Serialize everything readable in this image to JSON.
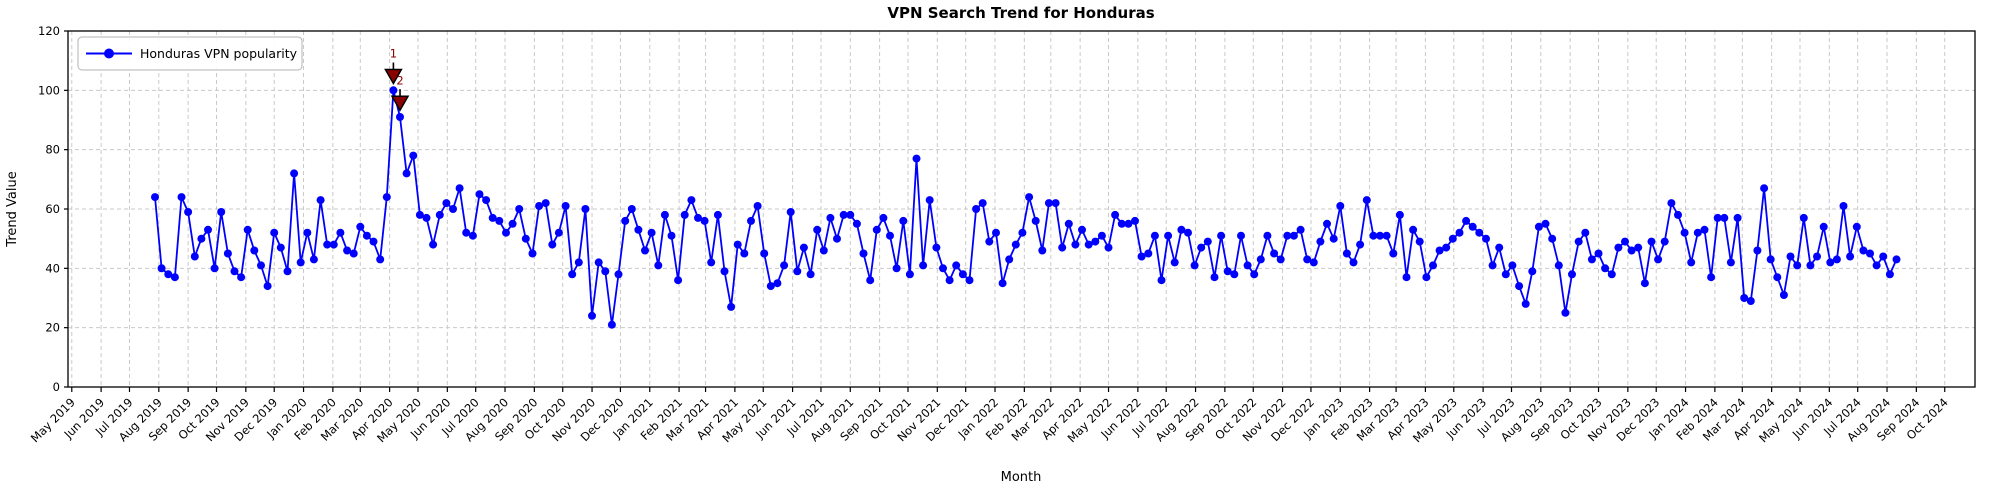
{
  "title": "VPN Search Trend for Honduras",
  "chart_data": {
    "type": "line",
    "title": "VPN Search Trend for Honduras",
    "xlabel": "Month",
    "ylabel": "Trend Value",
    "ylim": [
      0,
      120
    ],
    "yticks": [
      0,
      20,
      40,
      60,
      80,
      100,
      120
    ],
    "grid": true,
    "grid_style": "dashed",
    "legend_position": "upper left",
    "x_tick_labels": [
      "May 2019",
      "Jun 2019",
      "Jul 2019",
      "Aug 2019",
      "Sep 2019",
      "Oct 2019",
      "Nov 2019",
      "Dec 2019",
      "Jan 2020",
      "Feb 2020",
      "Mar 2020",
      "Apr 2020",
      "May 2020",
      "Jun 2020",
      "Jul 2020",
      "Aug 2020",
      "Sep 2020",
      "Oct 2020",
      "Nov 2020",
      "Dec 2020",
      "Jan 2021",
      "Feb 2021",
      "Mar 2021",
      "Apr 2021",
      "May 2021",
      "Jun 2021",
      "Jul 2021",
      "Aug 2021",
      "Sep 2021",
      "Oct 2021",
      "Nov 2021",
      "Dec 2021",
      "Jan 2022",
      "Feb 2022",
      "Mar 2022",
      "Apr 2022",
      "May 2022",
      "Jun 2022",
      "Jul 2022",
      "Aug 2022",
      "Sep 2022",
      "Oct 2022",
      "Nov 2022",
      "Dec 2022",
      "Jan 2023",
      "Feb 2023",
      "Mar 2023",
      "Apr 2023",
      "May 2023",
      "Jun 2023",
      "Jul 2023",
      "Aug 2023",
      "Sep 2023",
      "Oct 2023",
      "Nov 2023",
      "Dec 2023",
      "Jan 2024",
      "Feb 2024",
      "Mar 2024",
      "Apr 2024",
      "May 2024",
      "Jun 2024",
      "Jul 2024",
      "Aug 2024",
      "Sep 2024",
      "Oct 2024"
    ],
    "series": [
      {
        "name": "Honduras VPN popularity",
        "color": "#0000ff",
        "marker": "circle",
        "x_start": "2019-07-28",
        "x_step_days": 7,
        "values": [
          64,
          40,
          38,
          37,
          64,
          59,
          44,
          50,
          53,
          40,
          59,
          45,
          39,
          37,
          53,
          46,
          41,
          34,
          52,
          47,
          39,
          72,
          42,
          52,
          43,
          63,
          48,
          48,
          52,
          46,
          45,
          54,
          51,
          49,
          43,
          64,
          100,
          91,
          72,
          78,
          58,
          57,
          48,
          58,
          62,
          60,
          67,
          52,
          51,
          65,
          63,
          57,
          56,
          52,
          55,
          60,
          50,
          45,
          61,
          62,
          48,
          52,
          61,
          38,
          42,
          60,
          24,
          42,
          39,
          21,
          38,
          56,
          60,
          53,
          46,
          52,
          41,
          58,
          51,
          36,
          58,
          63,
          57,
          56,
          42,
          58,
          39,
          27,
          48,
          45,
          56,
          61,
          45,
          34,
          35,
          41,
          59,
          39,
          47,
          38,
          53,
          46,
          57,
          50,
          58,
          58,
          55,
          45,
          36,
          53,
          57,
          51,
          40,
          56,
          38,
          77,
          41,
          63,
          47,
          40,
          36,
          41,
          38,
          36,
          60,
          62,
          49,
          52,
          35,
          43,
          48,
          52,
          64,
          56,
          46,
          62,
          62,
          47,
          55,
          48,
          53,
          48,
          49,
          51,
          47,
          58,
          55,
          55,
          56,
          44,
          45,
          51,
          36,
          51,
          42,
          53,
          52,
          41,
          47,
          49,
          37,
          51,
          39,
          38,
          51,
          41,
          38,
          43,
          51,
          45,
          43,
          51,
          51,
          53,
          43,
          42,
          49,
          55,
          50,
          61,
          45,
          42,
          48,
          63,
          51,
          51,
          51,
          45,
          58,
          37,
          53,
          49,
          37,
          41,
          46,
          47,
          50,
          52,
          56,
          54,
          52,
          50,
          41,
          47,
          38,
          41,
          34,
          28,
          39,
          54,
          55,
          50,
          41,
          25,
          38,
          49,
          52,
          43,
          45,
          40,
          38,
          47,
          49,
          46,
          47,
          35,
          49,
          43,
          49,
          62,
          58,
          52,
          42,
          52,
          53,
          37,
          57,
          57,
          42,
          57,
          30,
          29,
          46,
          67,
          43,
          37,
          31,
          44,
          41,
          57,
          41,
          44,
          54,
          42,
          43,
          61,
          44,
          54,
          46,
          45,
          41,
          44,
          38,
          43
        ]
      }
    ],
    "annotations": [
      {
        "label": "1",
        "point_index": 36,
        "value": 100,
        "marker": "triangle-down",
        "fill": "#8b0000",
        "edge": "#000000"
      },
      {
        "label": "2",
        "point_index": 37,
        "value": 91,
        "marker": "triangle-down",
        "fill": "#8b0000",
        "edge": "#000000"
      }
    ],
    "colors": {
      "line": "#0000ff",
      "grid": "#c9c9c9",
      "spine": "#000000",
      "annotation": "#8b0000",
      "background": "#ffffff"
    }
  }
}
